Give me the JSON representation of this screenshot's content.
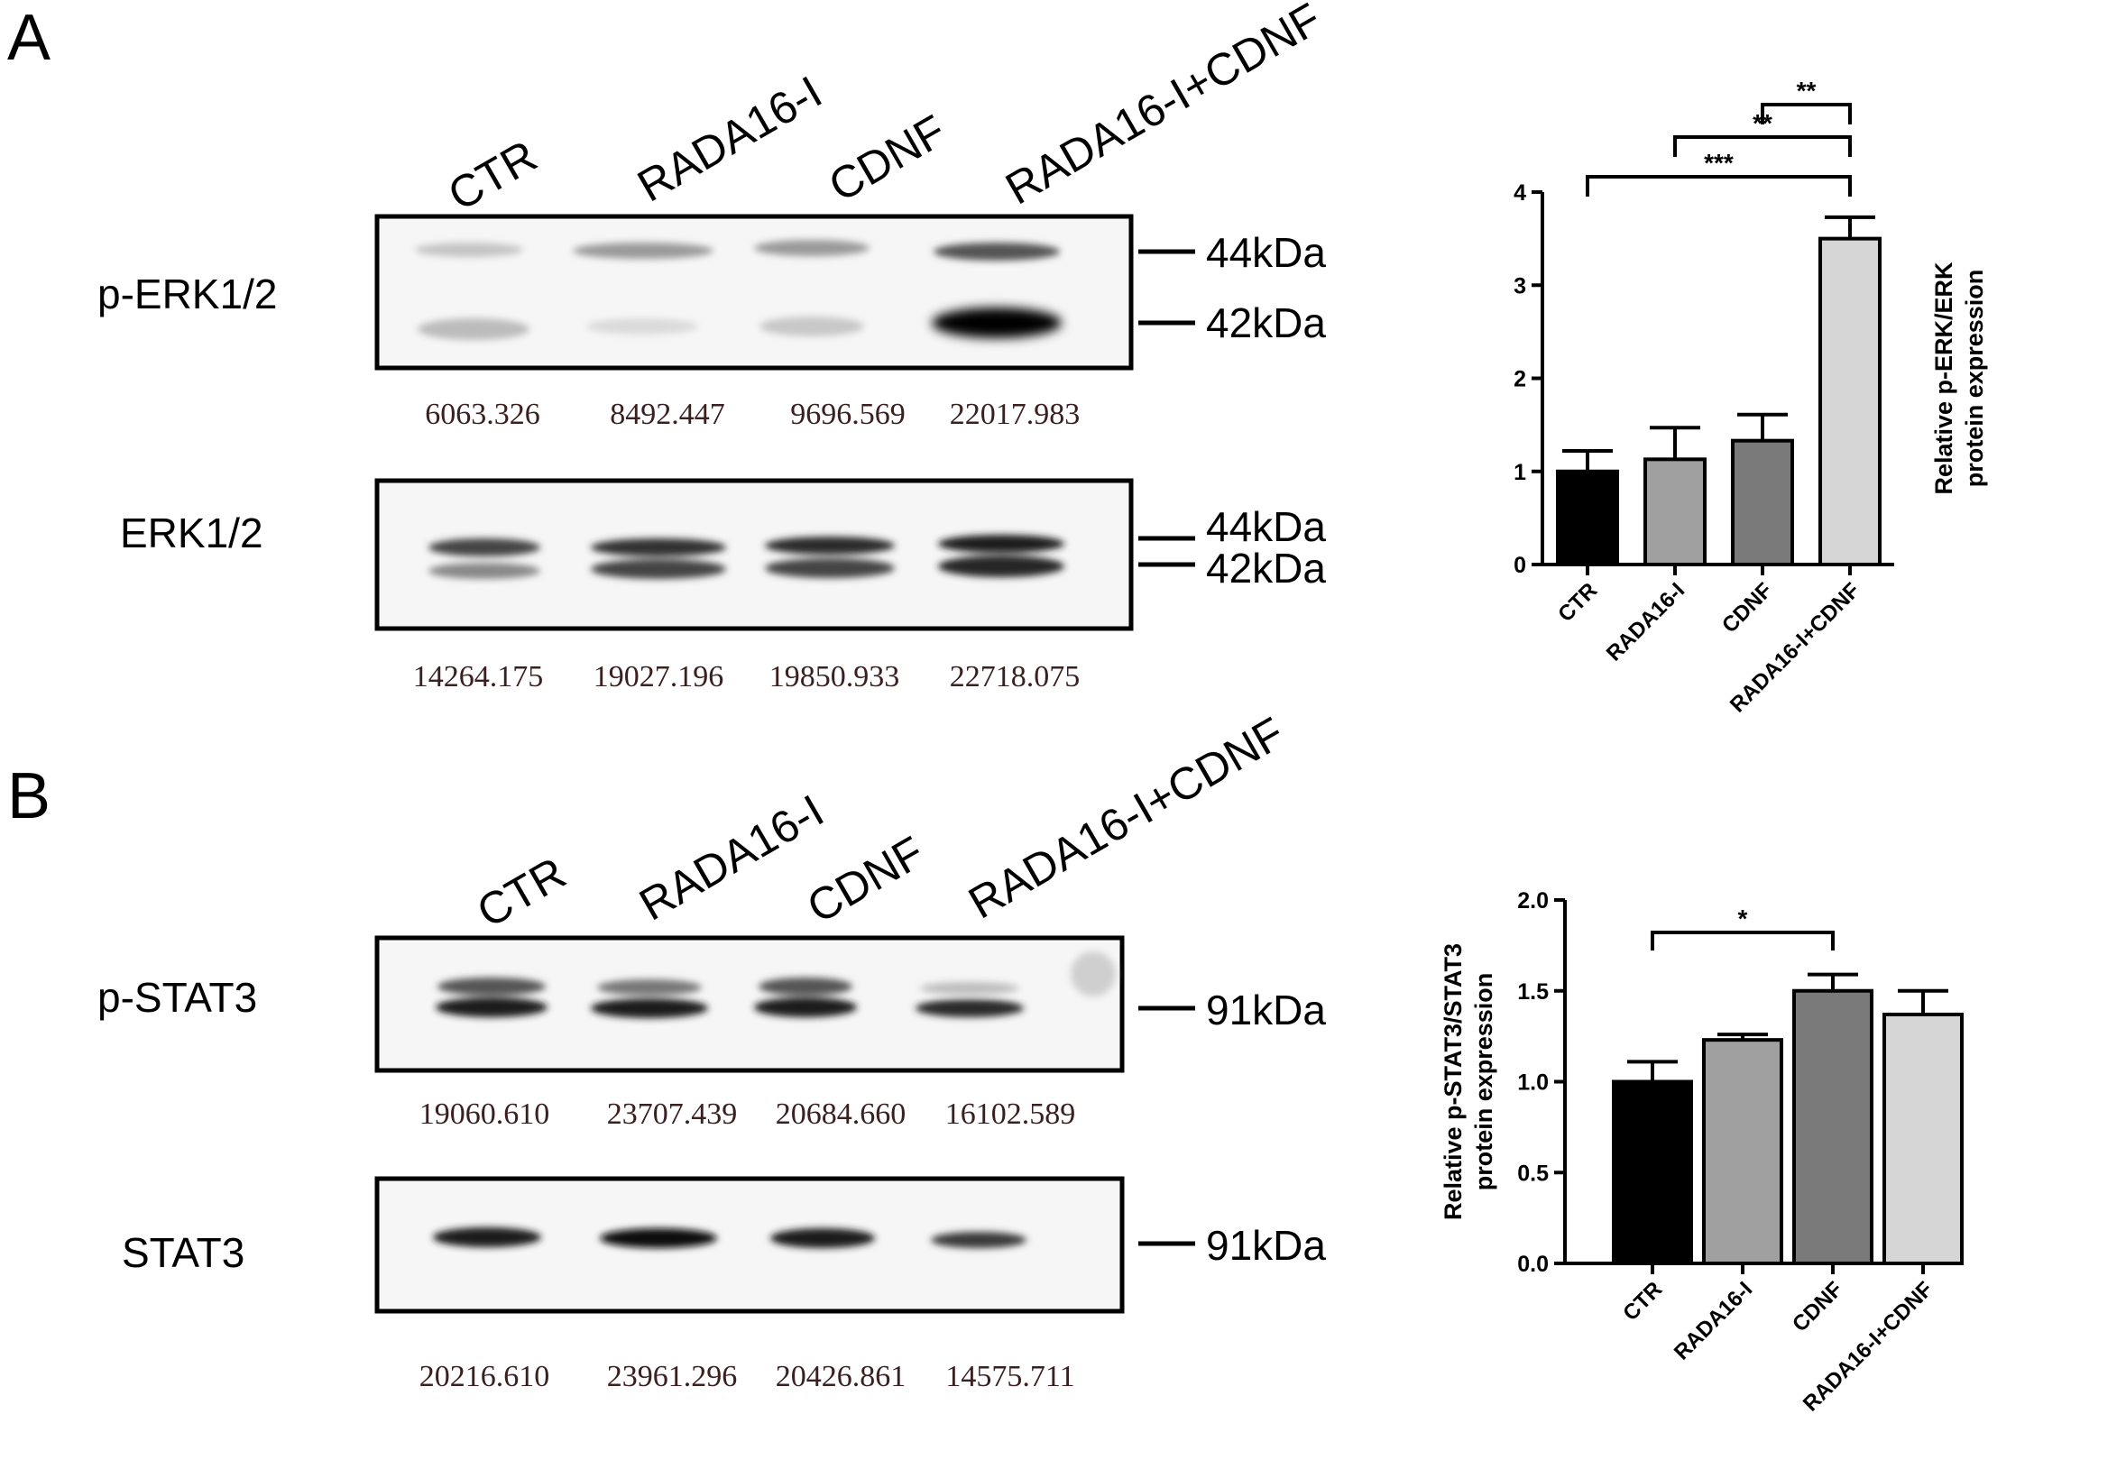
{
  "panels": [
    {
      "letter": "A",
      "lanes": [
        "CTR",
        "RADA16-I",
        "CDNF",
        "RADA16-I+CDNF"
      ],
      "blots": [
        {
          "label": "p-ERK1/2",
          "markers": [
            "44kDa",
            "42kDa"
          ],
          "quant": [
            "6063.326",
            "8492.447",
            "9696.569",
            "22017.983"
          ]
        },
        {
          "label": "ERK1/2",
          "markers": [
            "44kDa",
            "42kDa"
          ],
          "quant": [
            "14264.175",
            "19027.196",
            "19850.933",
            "22718.075"
          ]
        }
      ]
    },
    {
      "letter": "B",
      "lanes": [
        "CTR",
        "RADA16-I",
        "CDNF",
        "RADA16-I+CDNF"
      ],
      "blots": [
        {
          "label": "p-STAT3",
          "markers": [
            "91kDa"
          ],
          "quant": [
            "19060.610",
            "23707.439",
            "20684.660",
            "16102.589"
          ]
        },
        {
          "label": "STAT3",
          "markers": [
            "91kDa"
          ],
          "quant": [
            "20216.610",
            "23961.296",
            "20426.861",
            "14575.711"
          ]
        }
      ]
    }
  ],
  "chart_data": [
    {
      "type": "bar",
      "categories": [
        "CTR",
        "RADA16-I",
        "CDNF",
        "RADA16-I+CDNF"
      ],
      "values": [
        1.0,
        1.13,
        1.33,
        3.5
      ],
      "errors": [
        0.22,
        0.34,
        0.28,
        0.23
      ],
      "colors": [
        "#000000",
        "#a0a0a0",
        "#7a7a7a",
        "#d6d6d6"
      ],
      "ylabel": [
        "Relative p-ERK/ERK",
        "protein expression"
      ],
      "ylim": [
        0,
        4
      ],
      "yticks": [
        "0",
        "1",
        "2",
        "3",
        "4"
      ],
      "significance": [
        {
          "from": 0,
          "to": 3,
          "label": "***"
        },
        {
          "from": 1,
          "to": 3,
          "label": "**"
        },
        {
          "from": 2,
          "to": 3,
          "label": "**"
        }
      ]
    },
    {
      "type": "bar",
      "categories": [
        "CTR",
        "RADA16-I",
        "CDNF",
        "RADA16-I+CDNF"
      ],
      "values": [
        1.0,
        1.23,
        1.5,
        1.37
      ],
      "errors": [
        0.11,
        0.03,
        0.09,
        0.13
      ],
      "colors": [
        "#000000",
        "#a0a0a0",
        "#7a7a7a",
        "#d6d6d6"
      ],
      "ylabel": [
        "Relative p-STAT3/STAT3",
        "protein expression"
      ],
      "ylim": [
        0,
        2.0
      ],
      "yticks": [
        "0.0",
        "0.5",
        "1.0",
        "1.5",
        "2.0"
      ],
      "significance": [
        {
          "from": 0,
          "to": 2,
          "label": "*"
        }
      ]
    }
  ]
}
